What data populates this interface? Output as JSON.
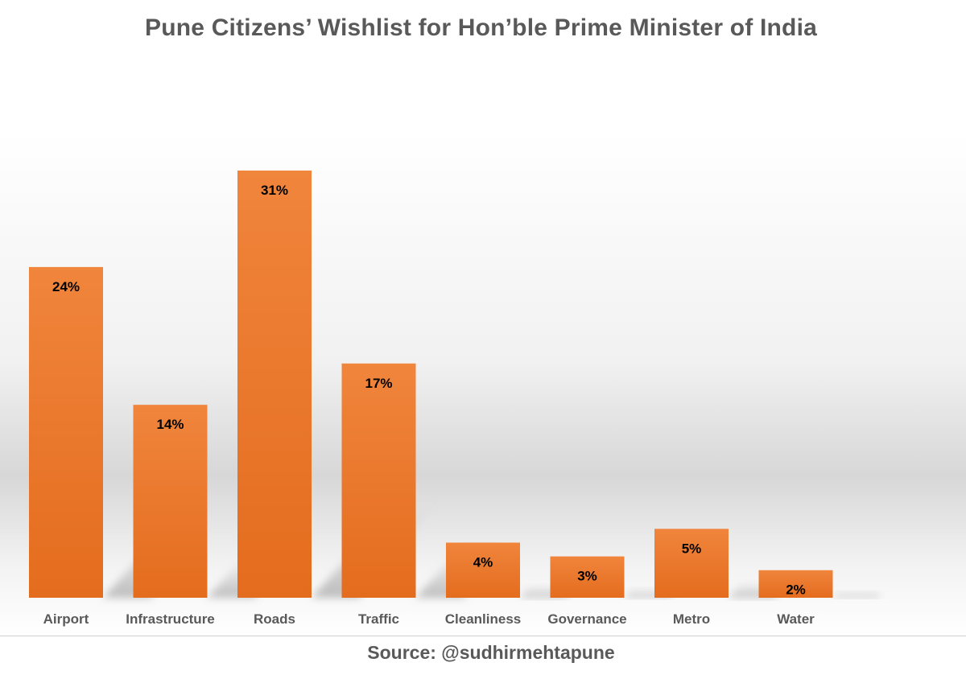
{
  "chart_data": {
    "type": "bar",
    "title": "Pune Citizens’ Wishlist for Hon’ble Prime Minister of India",
    "categories": [
      "Airport",
      "Infrastructure",
      "Roads",
      "Traffic",
      "Cleanliness",
      "Governance",
      "Metro",
      "Water"
    ],
    "values": [
      24,
      14,
      31,
      17,
      4,
      3,
      5,
      2
    ],
    "value_labels": [
      "24%",
      "14%",
      "31%",
      "17%",
      "4%",
      "3%",
      "5%",
      "2%"
    ],
    "unit": "%",
    "xlabel": "",
    "ylabel": "",
    "ylim": [
      0,
      31
    ],
    "grid": false,
    "legend": "none",
    "bar_color": "#E46C1E",
    "bar_color_light": "#F0853C",
    "label_color": "#000000",
    "text_color": "#595959"
  },
  "source": "Source: @sudhirmehtapune"
}
